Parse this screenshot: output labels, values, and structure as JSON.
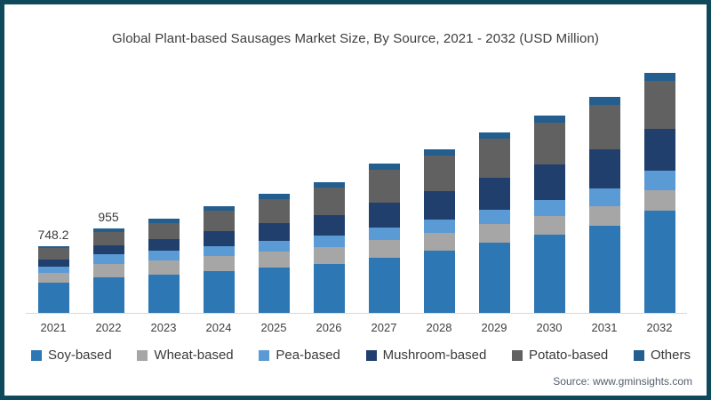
{
  "frame": {
    "border_color": "#0e4a5c",
    "background": "#ffffff"
  },
  "title": "Global Plant-based Sausages Market Size, By Source, 2021 - 2032 (USD Million)",
  "source": "Source: www.gminsights.com",
  "chart_data": {
    "type": "bar",
    "stacked": true,
    "grid": false,
    "legend_position": "bottom",
    "categories": [
      "2021",
      "2022",
      "2023",
      "2024",
      "2025",
      "2026",
      "2027",
      "2028",
      "2029",
      "2030",
      "2031",
      "2032"
    ],
    "series": [
      {
        "name": "Soy-based",
        "color": "#2d77b4",
        "values": [
          339,
          398,
          430,
          470,
          510,
          555,
          625,
          700,
          790,
          880,
          985,
          1150
        ]
      },
      {
        "name": "Wheat-based",
        "color": "#a6a6a6",
        "values": [
          113,
          155,
          160,
          170,
          178,
          186,
          200,
          205,
          210,
          214,
          220,
          227
        ]
      },
      {
        "name": "Pea-based",
        "color": "#5b9bd5",
        "values": [
          68,
          103,
          108,
          114,
          120,
          127,
          136,
          148,
          162,
          177,
          198,
          221
        ]
      },
      {
        "name": "Mushroom-based",
        "color": "#203f6d",
        "values": [
          78,
          103,
          130,
          165,
          200,
          230,
          280,
          315,
          355,
          395,
          435,
          476
        ]
      },
      {
        "name": "Potato-based",
        "color": "#616161",
        "values": [
          131.2,
          155,
          186,
          228,
          272,
          310,
          370,
          403,
          439,
          474,
          504,
          533
        ]
      },
      {
        "name": "Others",
        "color": "#235e8e",
        "values": [
          19,
          41,
          48,
          55,
          60,
          65,
          68,
          72,
          78,
          85,
          92,
          95
        ]
      }
    ],
    "totals": [
      748.2,
      955,
      1062,
      1202,
      1340,
      1473,
      1679,
      1843,
      2034,
      2225,
      2434,
      2702
    ],
    "data_labels": {
      "2021": "748.2",
      "2022": "955"
    },
    "xlabel": "",
    "ylabel": "",
    "ylim": [
      0,
      2800
    ]
  }
}
